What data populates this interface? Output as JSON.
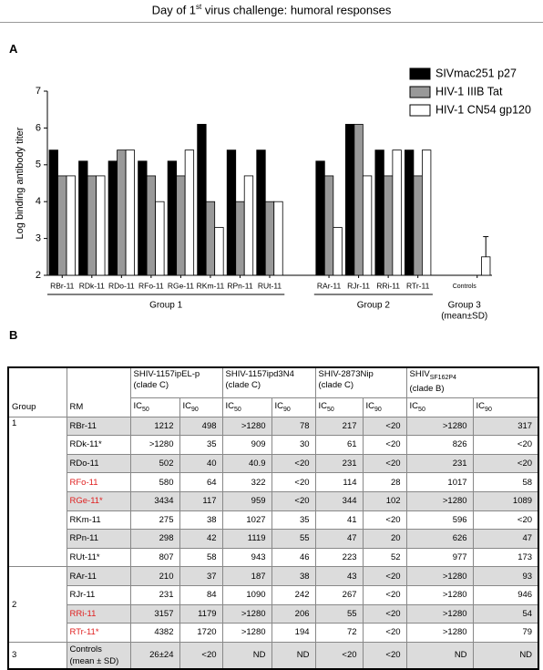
{
  "figure_title": [
    "Day of 1",
    "st",
    " virus challenge: humoral responses"
  ],
  "panel_labels": [
    "A",
    "B"
  ],
  "chart_data": {
    "type": "bar",
    "y_label": "Log binding antibody titer",
    "categories": [
      "RBr-11",
      "RDk-11",
      "RDo-11",
      "RFo-11",
      "RGe-11",
      "RKm-11",
      "RPn-11",
      "RUt-11",
      null,
      "RAr-11",
      "RJr-11",
      "RRi-11",
      "RTr-11",
      null,
      "Controls"
    ],
    "series": [
      {
        "name": "SIVmac251 p27",
        "color": "#000000",
        "values": [
          5.4,
          5.1,
          5.1,
          5.1,
          5.1,
          6.1,
          5.4,
          5.4,
          null,
          5.1,
          6.1,
          5.4,
          5.4,
          null,
          null
        ]
      },
      {
        "name": "HIV-1 IIIB Tat",
        "color": "#999999",
        "values": [
          4.7,
          4.7,
          5.4,
          4.7,
          4.7,
          4.0,
          4.0,
          4.0,
          null,
          4.7,
          6.1,
          4.7,
          4.7,
          null,
          null
        ]
      },
      {
        "name": "HIV-1 CN54 gp120",
        "color": "#ffffff",
        "values": [
          4.7,
          4.7,
          5.4,
          4.0,
          5.4,
          3.3,
          4.7,
          4.0,
          null,
          3.3,
          4.7,
          5.4,
          5.4,
          null,
          2.5
        ],
        "errors": [
          null,
          null,
          null,
          null,
          null,
          null,
          null,
          null,
          null,
          null,
          null,
          null,
          null,
          null,
          0.55
        ]
      }
    ],
    "groups": [
      {
        "label": "Group 1"
      },
      {
        "label": "Group 2"
      },
      {
        "label": "Group 3",
        "note": "(mean±SD)"
      }
    ],
    "ylim": [
      2,
      7
    ],
    "yticks": [
      2,
      3,
      4,
      5,
      6,
      7
    ],
    "legend": "top-right"
  },
  "table": {
    "group_header": "Group",
    "rm_header": "RM",
    "viruses": [
      {
        "name": "SHIV-1157ipEL-p",
        "clade": "(clade C)"
      },
      {
        "name": "SHIV-1157ipd3N4",
        "clade": "(clade C)"
      },
      {
        "name": "SHIV-2873Nip",
        "clade": "(clade C)"
      },
      {
        "name": "SHIV",
        "name_sub": "SF162P4",
        "clade": "(clade B)"
      }
    ],
    "ic_labels": [
      {
        "main": "IC",
        "sub": "50"
      },
      {
        "main": "IC",
        "sub": "90"
      }
    ],
    "highlight_color": "#e02020",
    "groups": [
      {
        "group": "1",
        "rows": [
          {
            "rm": "RBr-11",
            "cells": [
              "1212",
              "498",
              ">1280",
              "78",
              "217",
              "<20",
              ">1280",
              "317"
            ]
          },
          {
            "rm": "RDk-11*",
            "cells": [
              ">1280",
              "35",
              "909",
              "30",
              "61",
              "<20",
              "826",
              "<20"
            ]
          },
          {
            "rm": "RDo-11",
            "cells": [
              "502",
              "40",
              "40.9",
              "<20",
              "231",
              "<20",
              "231",
              "<20"
            ]
          },
          {
            "rm": "RFo-11",
            "highlight": true,
            "cells": [
              "580",
              "64",
              "322",
              "<20",
              "114",
              "28",
              "1017",
              "58"
            ]
          },
          {
            "rm": "RGe-11*",
            "highlight": true,
            "cells": [
              "3434",
              "117",
              "959",
              "<20",
              "344",
              "102",
              ">1280",
              "1089"
            ]
          },
          {
            "rm": "RKm-11",
            "cells": [
              "275",
              "38",
              "1027",
              "35",
              "41",
              "<20",
              "596",
              "<20"
            ]
          },
          {
            "rm": "RPn-11",
            "cells": [
              "298",
              "42",
              "1119",
              "55",
              "47",
              "20",
              "626",
              "47"
            ]
          },
          {
            "rm": "RUt-11*",
            "cells": [
              "807",
              "58",
              "943",
              "46",
              "223",
              "52",
              "977",
              "173"
            ]
          }
        ]
      },
      {
        "group": "2",
        "rows": [
          {
            "rm": "RAr-11",
            "cells": [
              "210",
              "37",
              "187",
              "38",
              "43",
              "<20",
              ">1280",
              "93"
            ]
          },
          {
            "rm": "RJr-11",
            "cells": [
              "231",
              "84",
              "1090",
              "242",
              "267",
              "<20",
              ">1280",
              "946"
            ]
          },
          {
            "rm": "RRi-11",
            "highlight": true,
            "cells": [
              "3157",
              "1179",
              ">1280",
              "206",
              "55",
              "<20",
              ">1280",
              "54"
            ]
          },
          {
            "rm": "RTr-11*",
            "highlight": true,
            "cells": [
              "4382",
              "1720",
              ">1280",
              "194",
              "72",
              "<20",
              ">1280",
              "79"
            ]
          }
        ]
      },
      {
        "group": "3",
        "rows": [
          {
            "rm": "Controls",
            "rm_note": "(mean ± SD)",
            "cells": [
              "26±24",
              "<20",
              "ND",
              "ND",
              "<20",
              "<20",
              "ND",
              "ND"
            ]
          }
        ]
      }
    ]
  }
}
